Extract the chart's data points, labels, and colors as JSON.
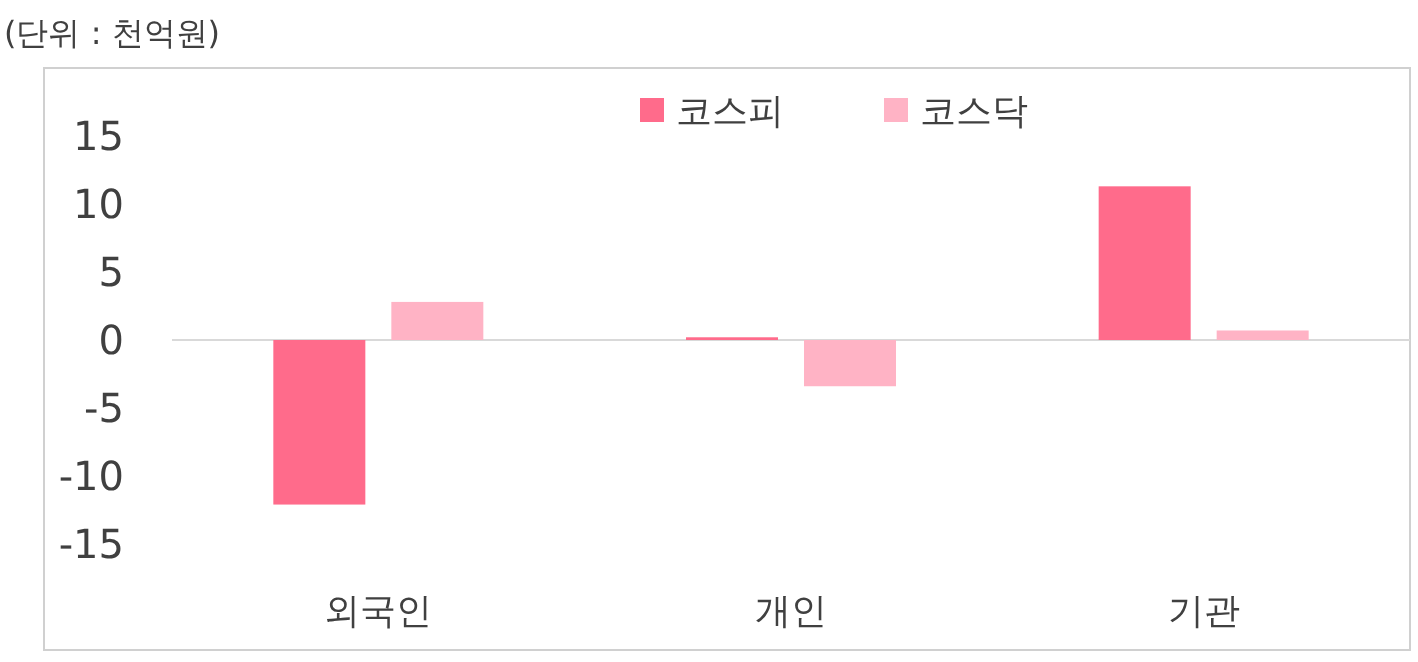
{
  "chart_data": {
    "type": "bar",
    "title": "(단위 : 천억원)",
    "categories": [
      "외국인",
      "개인",
      "기관"
    ],
    "series": [
      {
        "name": "코스피",
        "color": "#ff6b8b",
        "values": [
          -12.1,
          0.2,
          11.3
        ]
      },
      {
        "name": "코스닥",
        "color": "#ffb3c5",
        "values": [
          2.8,
          -3.4,
          0.7
        ]
      }
    ],
    "ylim": [
      -15,
      15
    ],
    "yticks": [
      -15,
      -10,
      -5,
      0,
      5,
      10,
      15
    ],
    "ref_lines": [
      {
        "axis": "y",
        "value": 0,
        "color": "#d9d9d9"
      }
    ],
    "legend": "top"
  }
}
